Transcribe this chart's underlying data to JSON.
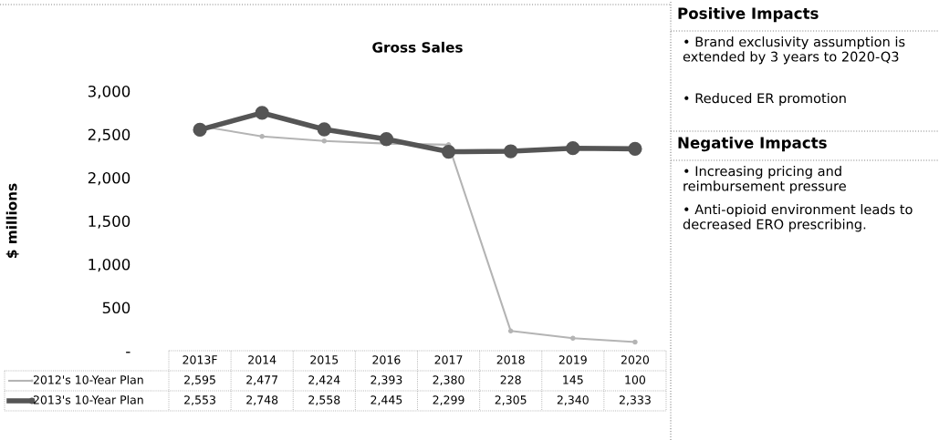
{
  "chart_data": {
    "type": "line",
    "title": "Gross Sales",
    "ylabel": "$ millions",
    "categories": [
      "2013F",
      "2014",
      "2015",
      "2016",
      "2017",
      "2018",
      "2019",
      "2020"
    ],
    "series": [
      {
        "name": "2012's 10-Year Plan",
        "color": "#b4b4b4",
        "values": [
          2595,
          2477,
          2424,
          2393,
          2380,
          228,
          145,
          100
        ],
        "value_labels": [
          "2,595",
          "2,477",
          "2,424",
          "2,393",
          "2,380",
          "228",
          "145",
          "100"
        ]
      },
      {
        "name": "2013's 10-Year Plan",
        "color": "#555555",
        "values": [
          2553,
          2748,
          2558,
          2445,
          2299,
          2305,
          2340,
          2333
        ],
        "value_labels": [
          "2,553",
          "2,748",
          "2,558",
          "2,445",
          "2,299",
          "2,305",
          "2,340",
          "2,333"
        ]
      }
    ],
    "ylim": [
      0,
      3000
    ],
    "yticks": [
      {
        "value": 0,
        "label": "-"
      },
      500,
      {
        "value": 1000,
        "label": "1,000"
      },
      {
        "value": 1500,
        "label": "1,500"
      },
      {
        "value": 2000,
        "label": "2,000"
      },
      {
        "value": 2500,
        "label": "2,500"
      },
      {
        "value": 3000,
        "label": "3,000"
      }
    ],
    "grid": false,
    "legend": "bottom",
    "marker": "circle",
    "line_style": "solid",
    "annotations": [
      "Positive Impacts",
      "• Brand exclusivity assumption is extended by 3 years to 2020-Q3",
      "• Reduced ER promotion",
      "Negative Impacts",
      "• Increasing pricing and reimbursement pressure",
      "• Anti-opioid environment leads to decreased ERO prescribing."
    ]
  }
}
